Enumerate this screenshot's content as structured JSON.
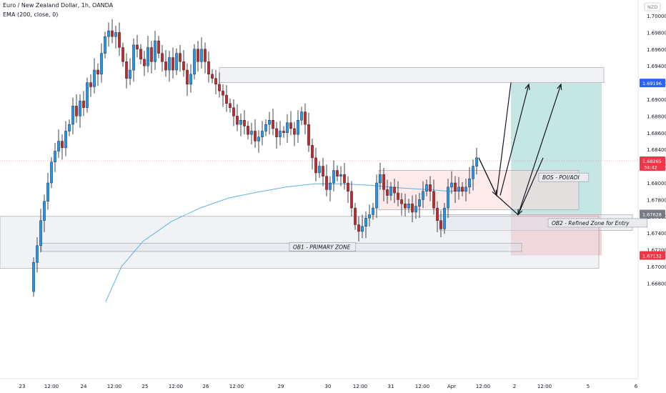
{
  "header": {
    "title": "Euro / New Zealand Dollar, 1h, OANDA",
    "indicator": "EMA (200, close, 0)"
  },
  "currency_badge": "NZD",
  "colors": {
    "up": "#26a69a",
    "down": "#ef5350",
    "candle_up_fill": "#2196f3",
    "candle_down_fill": "#c62828",
    "ema": "#5fb3e6",
    "target": "#b2dfdb",
    "stop": "#f8c8c8",
    "zone_gray": "#e0e3eb",
    "zone_pink": "#fbd9d9",
    "last_price": "#f23645",
    "badge_blue": "#2962ff",
    "badge_gray": "#787b86"
  },
  "price_labels": {
    "current": "1.68265",
    "countdown": "34:42",
    "target": "1.69196",
    "entry": "1.67628",
    "stop": "1.67132"
  },
  "annotations": {
    "bos": "BOS - POI/AOI",
    "ob2": "OB2 - Refined Zone for Entry",
    "ob1": "OB1 - PRIMARY ZONE"
  },
  "chart_data": {
    "type": "candlestick",
    "title": "Euro / New Zealand Dollar, 1h, OANDA",
    "xlabel": "",
    "ylabel": "",
    "ylim": [
      1.666,
      1.7008
    ],
    "y_ticks": [
      "1.70000",
      "1.69800",
      "1.69600",
      "1.69400",
      "1.69200",
      "1.69000",
      "1.68800",
      "1.68600",
      "1.68400",
      "1.68200",
      "1.68000",
      "1.67800",
      "1.67600",
      "1.67400",
      "1.67200",
      "1.67000",
      "1.66800"
    ],
    "x_ticks": [
      "23",
      "12:00",
      "24",
      "12:00",
      "25",
      "12:00",
      "26",
      "12:00",
      "29",
      "30",
      "12:00",
      "31",
      "12:00",
      "Apr",
      "12:00",
      "2",
      "12:00",
      "5",
      "6"
    ],
    "series": [
      {
        "name": "EMA (200, close, 0)",
        "type": "line",
        "points": [
          [
            148,
            1.6658
          ],
          [
            170,
            1.67
          ],
          [
            200,
            1.673
          ],
          [
            240,
            1.6754
          ],
          [
            280,
            1.677
          ],
          [
            320,
            1.6782
          ],
          [
            360,
            1.6789
          ],
          [
            400,
            1.6795
          ],
          [
            440,
            1.6799
          ],
          [
            480,
            1.6799
          ],
          [
            520,
            1.6797
          ],
          [
            560,
            1.6794
          ],
          [
            600,
            1.6792
          ],
          [
            630,
            1.679
          ],
          [
            650,
            1.6791
          ]
        ]
      }
    ],
    "candle_path": [
      [
        45,
        1.667
      ],
      [
        50,
        1.6705
      ],
      [
        55,
        1.6725
      ],
      [
        60,
        1.6755
      ],
      [
        65,
        1.6778
      ],
      [
        70,
        1.68
      ],
      [
        75,
        1.6825
      ],
      [
        80,
        1.6838
      ],
      [
        85,
        1.685
      ],
      [
        90,
        1.6842
      ],
      [
        95,
        1.6862
      ],
      [
        100,
        1.687
      ],
      [
        105,
        1.6892
      ],
      [
        110,
        1.688
      ],
      [
        115,
        1.6898
      ],
      [
        120,
        1.689
      ],
      [
        125,
        1.692
      ],
      [
        130,
        1.6915
      ],
      [
        135,
        1.6935
      ],
      [
        140,
        1.693
      ],
      [
        145,
        1.6955
      ],
      [
        150,
        1.6975
      ],
      [
        155,
        1.6982
      ],
      [
        160,
        1.6975
      ],
      [
        165,
        1.698
      ],
      [
        170,
        1.6962
      ],
      [
        175,
        1.6945
      ],
      [
        180,
        1.6925
      ],
      [
        185,
        1.6935
      ],
      [
        190,
        1.6965
      ],
      [
        195,
        1.696
      ],
      [
        200,
        1.6948
      ],
      [
        205,
        1.694
      ],
      [
        210,
        1.6962
      ],
      [
        215,
        1.6945
      ],
      [
        220,
        1.697
      ],
      [
        225,
        1.6955
      ],
      [
        230,
        1.6945
      ],
      [
        235,
        1.6935
      ],
      [
        240,
        1.695
      ],
      [
        245,
        1.6935
      ],
      [
        250,
        1.6955
      ],
      [
        255,
        1.6945
      ],
      [
        260,
        1.6935
      ],
      [
        265,
        1.6918
      ],
      [
        270,
        1.693
      ],
      [
        275,
        1.696
      ],
      [
        280,
        1.6945
      ],
      [
        285,
        1.696
      ],
      [
        290,
        1.6945
      ],
      [
        295,
        1.693
      ],
      [
        300,
        1.6925
      ],
      [
        305,
        1.6918
      ],
      [
        310,
        1.691
      ],
      [
        315,
        1.6905
      ],
      [
        320,
        1.6895
      ],
      [
        325,
        1.689
      ],
      [
        330,
        1.688
      ],
      [
        335,
        1.687
      ],
      [
        340,
        1.6875
      ],
      [
        345,
        1.6868
      ],
      [
        350,
        1.6858
      ],
      [
        355,
        1.6862
      ],
      [
        360,
        1.685
      ],
      [
        365,
        1.6855
      ],
      [
        370,
        1.6862
      ],
      [
        375,
        1.687
      ],
      [
        380,
        1.6875
      ],
      [
        385,
        1.6865
      ],
      [
        390,
        1.6855
      ],
      [
        395,
        1.6862
      ],
      [
        400,
        1.686
      ],
      [
        405,
        1.6872
      ],
      [
        410,
        1.6865
      ],
      [
        415,
        1.6858
      ],
      [
        420,
        1.6875
      ],
      [
        425,
        1.6885
      ],
      [
        430,
        1.687
      ],
      [
        435,
        1.6845
      ],
      [
        440,
        1.683
      ],
      [
        445,
        1.6812
      ],
      [
        450,
        1.682
      ],
      [
        455,
        1.6808
      ],
      [
        460,
        1.6792
      ],
      [
        465,
        1.68
      ],
      [
        470,
        1.6815
      ],
      [
        475,
        1.6808
      ],
      [
        480,
        1.681
      ],
      [
        485,
        1.68
      ],
      [
        490,
        1.679
      ],
      [
        495,
        1.677
      ],
      [
        500,
        1.675
      ],
      [
        505,
        1.6742
      ],
      [
        510,
        1.6748
      ],
      [
        515,
        1.6758
      ],
      [
        520,
        1.6762
      ],
      [
        525,
        1.677
      ],
      [
        530,
        1.68
      ],
      [
        535,
        1.681
      ],
      [
        540,
        1.6792
      ],
      [
        545,
        1.6785
      ],
      [
        550,
        1.6795
      ],
      [
        555,
        1.6788
      ],
      [
        560,
        1.678
      ],
      [
        565,
        1.6775
      ],
      [
        570,
        1.677
      ],
      [
        575,
        1.6775
      ],
      [
        580,
        1.6765
      ],
      [
        585,
        1.6772
      ],
      [
        590,
        1.678
      ],
      [
        595,
        1.679
      ],
      [
        600,
        1.6798
      ],
      [
        605,
        1.679
      ],
      [
        610,
        1.677
      ],
      [
        615,
        1.6755
      ],
      [
        620,
        1.6745
      ],
      [
        625,
        1.677
      ],
      [
        630,
        1.6795
      ],
      [
        635,
        1.68
      ],
      [
        640,
        1.679
      ],
      [
        645,
        1.6795
      ],
      [
        650,
        1.679
      ],
      [
        655,
        1.6795
      ],
      [
        660,
        1.6805
      ],
      [
        665,
        1.682
      ],
      [
        670,
        1.683
      ]
    ],
    "zones": [
      {
        "label": "",
        "x": [
          307,
          845
        ],
        "y": [
          1.692,
          1.6938
        ],
        "kind": "gray"
      },
      {
        "label": "BOS - POI/AOI",
        "x": [
          530,
          810
        ],
        "y": [
          1.6768,
          1.6815
        ],
        "kind": "pink"
      },
      {
        "label": "OB2 - Refined Zone for Entry",
        "x": [
          615,
          885
        ],
        "y": [
          1.6743,
          1.6762
        ],
        "kind": "gray"
      },
      {
        "label": "OB1 - PRIMARY ZONE",
        "x": [
          0,
          838
        ],
        "y": [
          1.6698,
          1.676
        ],
        "kind": "gray"
      },
      {
        "label": "",
        "x": [
          58,
          730
        ],
        "y": [
          1.6718,
          1.6728
        ],
        "kind": "gray"
      }
    ],
    "position": {
      "x": [
        715,
        842
      ],
      "target": 1.69196,
      "entry": 1.67628,
      "stop": 1.67132
    },
    "projection": [
      [
        670,
        1.683
      ],
      [
        695,
        1.6785
      ],
      [
        715,
        1.692
      ]
    ],
    "projection2": [
      [
        670,
        1.683
      ],
      [
        695,
        1.6785
      ],
      [
        725,
        1.6762
      ],
      [
        785,
        1.6918
      ]
    ],
    "grid": false,
    "legend": "top-left"
  }
}
